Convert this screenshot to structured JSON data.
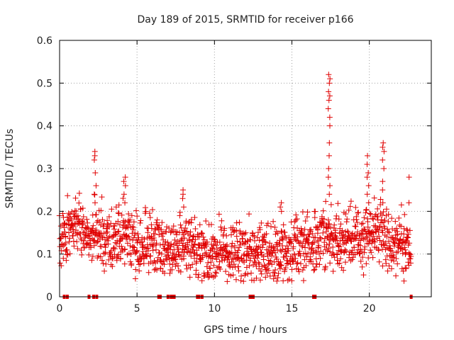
{
  "chart_data": {
    "type": "scatter",
    "title": "Day 189 of 2015, SRMTID for receiver p166",
    "xlabel": "GPS time / hours",
    "ylabel": "SRMTID / TECUs",
    "xlim": [
      0,
      24
    ],
    "ylim": [
      0,
      0.6
    ],
    "x_ticks": [
      0,
      5,
      10,
      15,
      20
    ],
    "x_tick_labels": [
      "0",
      "5",
      "10",
      "15",
      "20"
    ],
    "y_ticks": [
      0,
      0.1,
      0.2,
      0.3,
      0.4,
      0.5,
      0.6
    ],
    "y_tick_labels": [
      "0",
      "0.1",
      "0.2",
      "0.3",
      "0.4",
      "0.5",
      "0.6"
    ],
    "grid": true,
    "marker": "plus",
    "color": "#e00000",
    "x_range_of_data": [
      0,
      22.7
    ],
    "trend": {
      "x": [
        0.0,
        0.3,
        0.6,
        0.8,
        1.0,
        1.3,
        1.6,
        2.0,
        2.3,
        2.6,
        3.0,
        3.5,
        4.0,
        4.5,
        5.0,
        5.5,
        6.0,
        6.5,
        7.0,
        7.5,
        8.0,
        8.5,
        9.0,
        9.5,
        10.0,
        10.5,
        11.0,
        11.5,
        12.0,
        12.5,
        13.0,
        13.5,
        14.0,
        14.5,
        15.0,
        15.5,
        16.0,
        16.5,
        17.0,
        17.5,
        18.0,
        18.5,
        19.0,
        19.5,
        20.0,
        20.5,
        21.0,
        21.5,
        22.0,
        22.5
      ],
      "y": [
        0.13,
        0.14,
        0.16,
        0.17,
        0.17,
        0.16,
        0.15,
        0.14,
        0.15,
        0.14,
        0.13,
        0.13,
        0.15,
        0.14,
        0.12,
        0.13,
        0.12,
        0.11,
        0.1,
        0.11,
        0.13,
        0.12,
        0.11,
        0.1,
        0.1,
        0.11,
        0.1,
        0.1,
        0.11,
        0.1,
        0.1,
        0.1,
        0.11,
        0.1,
        0.11,
        0.12,
        0.13,
        0.12,
        0.13,
        0.14,
        0.13,
        0.13,
        0.14,
        0.13,
        0.15,
        0.14,
        0.14,
        0.13,
        0.12,
        0.11
      ]
    },
    "spikes": [
      {
        "x": 2.3,
        "y_values": [
          0.34,
          0.33,
          0.32,
          0.29,
          0.26,
          0.24,
          0.22
        ]
      },
      {
        "x": 4.2,
        "y_values": [
          0.28,
          0.27,
          0.26,
          0.24,
          0.22
        ]
      },
      {
        "x": 8.0,
        "y_values": [
          0.25,
          0.24,
          0.23,
          0.21
        ]
      },
      {
        "x": 14.3,
        "y_values": [
          0.22,
          0.21,
          0.2
        ]
      },
      {
        "x": 17.4,
        "y_values": [
          0.52,
          0.51,
          0.5,
          0.48,
          0.47,
          0.46,
          0.44,
          0.42,
          0.4,
          0.36,
          0.33,
          0.3,
          0.28,
          0.26,
          0.24
        ]
      },
      {
        "x": 19.9,
        "y_values": [
          0.33,
          0.31,
          0.29,
          0.28,
          0.26,
          0.24,
          0.22
        ]
      },
      {
        "x": 20.9,
        "y_values": [
          0.36,
          0.35,
          0.34,
          0.32,
          0.3,
          0.27,
          0.25,
          0.22
        ]
      },
      {
        "x": 22.6,
        "y_values": [
          0.28,
          0.22
        ]
      }
    ],
    "zero_points_x": [
      0.3,
      0.5,
      1.9,
      2.2,
      2.4,
      6.4,
      6.5,
      7.0,
      7.2,
      7.3,
      7.4,
      8.9,
      9.0,
      9.2,
      12.3,
      12.4,
      12.5,
      16.4,
      16.5,
      22.7
    ]
  }
}
